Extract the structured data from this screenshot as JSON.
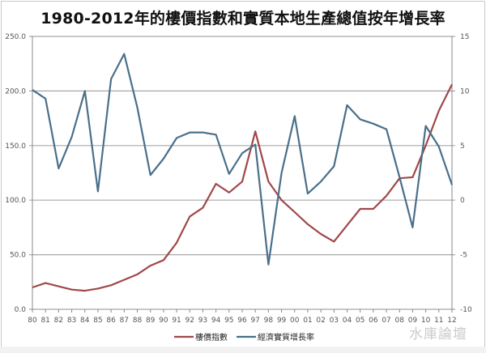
{
  "title": "1980-2012年的樓價指數和實質本地生產總值按年增長率",
  "watermark": "水庫論壇",
  "colors": {
    "property_index": "#A0484A",
    "gdp_growth": "#4A6F8A",
    "grid": "#A8A8A8",
    "axis": "#888888"
  },
  "legend": [
    {
      "label": "樓價指數",
      "color": "#A0484A"
    },
    {
      "label": "經濟實質增長率",
      "color": "#4A6F8A"
    }
  ],
  "chart_data": {
    "type": "line",
    "title": "1980-2012年的樓價指數和實質本地生產總值按年增長率",
    "xlabel": "",
    "ylabel": "",
    "y2label": "",
    "categories": [
      "80",
      "81",
      "82",
      "83",
      "84",
      "85",
      "86",
      "87",
      "88",
      "89",
      "90",
      "91",
      "92",
      "93",
      "94",
      "95",
      "96",
      "97",
      "98",
      "99",
      "00",
      "01",
      "02",
      "03",
      "04",
      "05",
      "06",
      "07",
      "08",
      "09",
      "10",
      "11",
      "12"
    ],
    "left_axis": {
      "ylim": [
        0,
        250
      ],
      "ticks": [
        "0.0",
        "50.0",
        "100.0",
        "150.0",
        "200.0",
        "250.0"
      ]
    },
    "right_axis": {
      "ylim": [
        -10,
        15
      ],
      "ticks": [
        "-10",
        "-5",
        "0",
        "5",
        "10",
        "15"
      ]
    },
    "grid": true,
    "legend_position": "bottom",
    "series": [
      {
        "name": "樓價指數",
        "axis": "left",
        "values": [
          20,
          24,
          21,
          18,
          17,
          19,
          22,
          27,
          32,
          40,
          45,
          61,
          85,
          93,
          115,
          107,
          117,
          163,
          117,
          100,
          89,
          78,
          69,
          62,
          77,
          92,
          92,
          104,
          120,
          121,
          150,
          182,
          206
        ]
      },
      {
        "name": "經濟實質增長率",
        "axis": "right",
        "values": [
          10.1,
          9.3,
          2.9,
          5.8,
          10.0,
          0.8,
          11.1,
          13.4,
          8.5,
          2.3,
          3.8,
          5.7,
          6.2,
          6.2,
          6.0,
          2.4,
          4.3,
          5.1,
          -5.9,
          2.5,
          7.7,
          0.6,
          1.7,
          3.1,
          8.7,
          7.4,
          7.0,
          6.5,
          2.1,
          -2.5,
          6.8,
          4.9,
          1.4
        ]
      }
    ]
  }
}
